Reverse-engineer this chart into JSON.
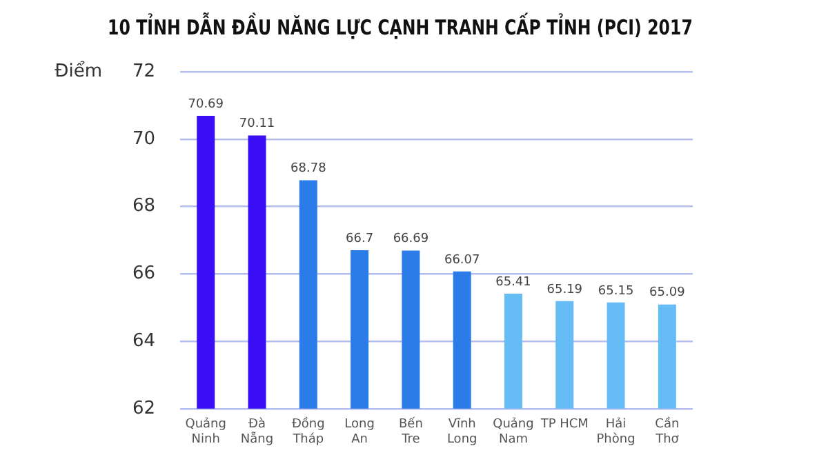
{
  "chart_data": {
    "type": "bar",
    "title": "10 TỈNH DẪN ĐẦU NĂNG LỰC CẠNH TRANH CẤP TỈNH (PCI) 2017",
    "ylabel": "Điểm",
    "categories": [
      "Quảng\nNinh",
      "Đà\nNẵng",
      "Đồng\nTháp",
      "Long\nAn",
      "Bến\nTre",
      "Vĩnh\nLong",
      "Quảng\nNam",
      "TP HCM",
      "Hải\nPhòng",
      "Cần\nThơ"
    ],
    "values": [
      70.69,
      70.11,
      68.78,
      66.7,
      66.69,
      66.07,
      65.41,
      65.19,
      65.15,
      65.09
    ],
    "colors": [
      "#3a0ff7",
      "#3a0ff7",
      "#2b7be8",
      "#2b7be8",
      "#2b7be8",
      "#2b7be8",
      "#66bdf5",
      "#66bdf5",
      "#66bdf5",
      "#66bdf5"
    ],
    "ylim": [
      62,
      72
    ],
    "yticks": [
      62,
      64,
      66,
      68,
      70,
      72
    ],
    "grid": "y",
    "data_labels": true
  }
}
